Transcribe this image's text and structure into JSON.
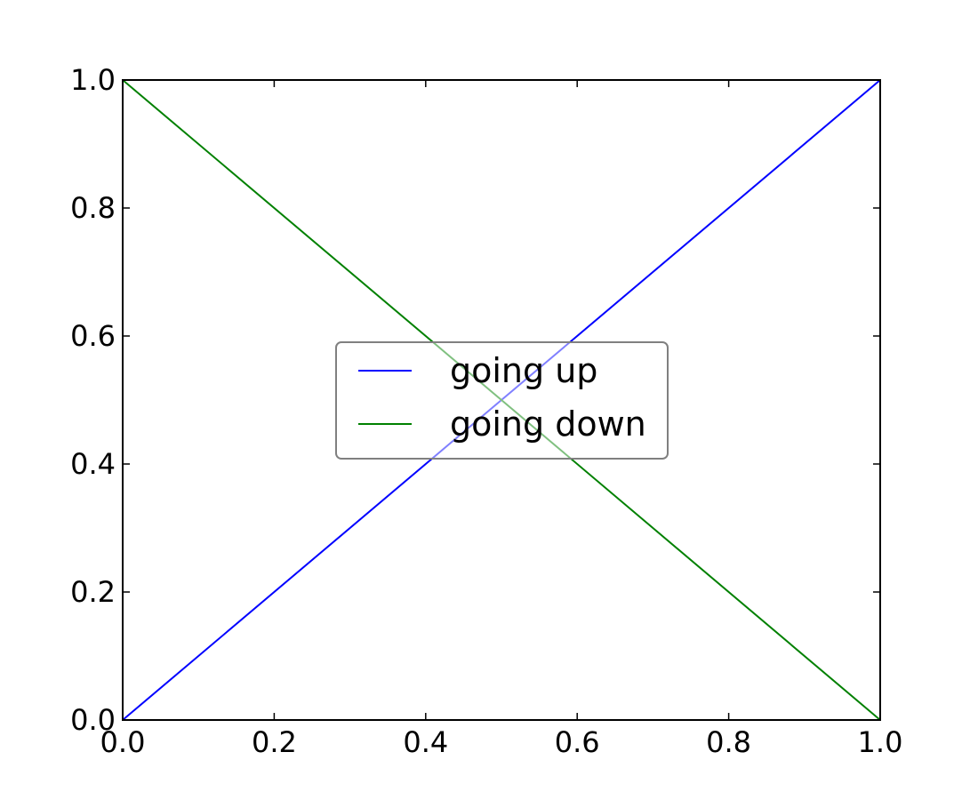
{
  "chart_data": {
    "type": "line",
    "title": "",
    "xlabel": "",
    "ylabel": "",
    "xlim": [
      0.0,
      1.0
    ],
    "ylim": [
      0.0,
      1.0
    ],
    "xticks": [
      "0.0",
      "0.2",
      "0.4",
      "0.6",
      "0.8",
      "1.0"
    ],
    "yticks": [
      "0.0",
      "0.2",
      "0.4",
      "0.6",
      "0.8",
      "1.0"
    ],
    "grid": false,
    "legend": {
      "placement": "center",
      "frame_alpha": 0.5
    },
    "series": [
      {
        "name": "going up",
        "color": "#0000ff",
        "x": [
          0.0,
          1.0
        ],
        "y": [
          0.0,
          1.0
        ]
      },
      {
        "name": "going down",
        "color": "#008000",
        "x": [
          0.0,
          1.0
        ],
        "y": [
          1.0,
          0.0
        ]
      }
    ]
  }
}
